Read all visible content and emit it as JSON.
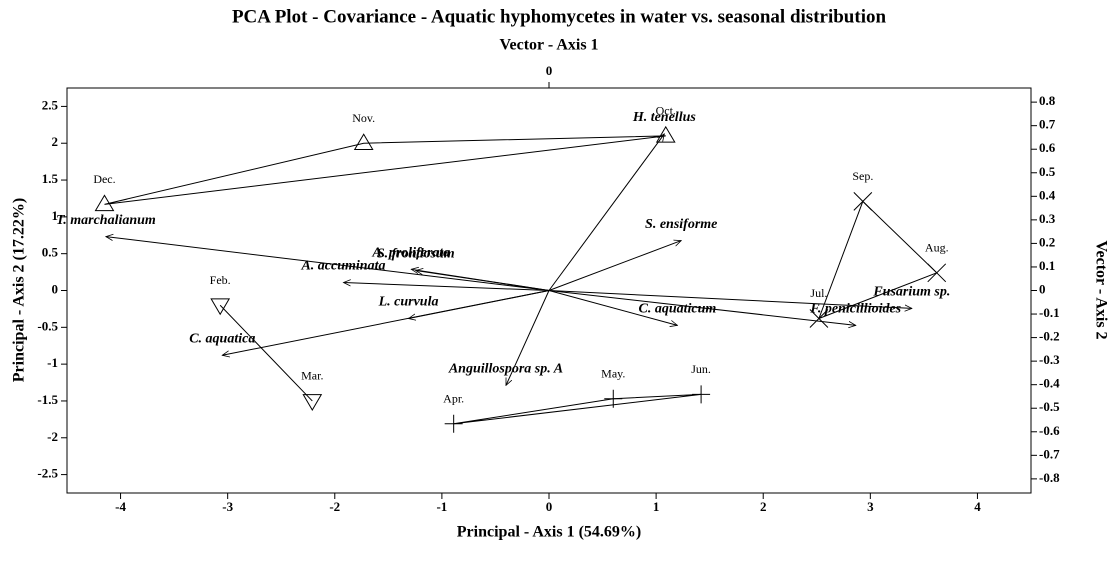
{
  "chart_data": {
    "type": "biplot",
    "title": "PCA Plot - Covariance - Aquatic hyphomycetes in water vs. seasonal distribution",
    "x2_label": "Vector - Axis 1",
    "y_label": "Principal - Axis 2 (17.22%)",
    "y2_label": "Vector - Axis 2",
    "x_label": "Principal - Axis 1 (54.69%)",
    "xlim": [
      -4.5,
      4.5
    ],
    "xticks": [
      -4,
      -3,
      -2,
      -1,
      0,
      1,
      2,
      3,
      4
    ],
    "ylim": [
      -2.75,
      2.75
    ],
    "yticks": [
      2.5,
      2,
      1.5,
      1,
      0.5,
      0,
      -0.5,
      -1,
      -1.5,
      -2,
      -2.5
    ],
    "x2lim": [
      -1.4,
      1.4
    ],
    "x2ticks": [
      0
    ],
    "y2lim": [
      -0.86,
      0.86
    ],
    "y2ticks": [
      0.8,
      0.7,
      0.6,
      0.5,
      0.4,
      0.3,
      0.2,
      0.1,
      0,
      -0.1,
      -0.2,
      -0.3,
      -0.4,
      -0.5,
      -0.6,
      -0.7,
      -0.8
    ],
    "color": "#000000",
    "series": [
      {
        "marker": "triangle-up",
        "labels": [
          "Dec.",
          "Nov.",
          "Oct."
        ],
        "x": [
          -4.15,
          -1.73,
          1.09
        ],
        "y": [
          1.17,
          2.0,
          2.1
        ]
      },
      {
        "marker": "triangle-down",
        "labels": [
          "Feb.",
          "Mar."
        ],
        "x": [
          -3.07,
          -2.21
        ],
        "y": [
          -0.2,
          -1.5
        ]
      },
      {
        "marker": "plus",
        "labels": [
          "Apr.",
          "May.",
          "Jun."
        ],
        "x": [
          -0.89,
          0.6,
          1.42
        ],
        "y": [
          -1.81,
          -1.47,
          -1.41
        ]
      },
      {
        "marker": "cross",
        "labels": [
          "Jul.",
          "Aug.",
          "Sep."
        ],
        "x": [
          2.52,
          3.62,
          2.93
        ],
        "y": [
          -0.38,
          0.24,
          1.21
        ]
      }
    ],
    "vectors": {
      "labels": [
        "H. tenellus",
        "S. ensiforme",
        "T. marchalianum",
        "A. proliferata",
        "S. frondosum",
        "A. accuminata",
        "L. curvula",
        "C. aquatica",
        "Anguillospora sp. A",
        "C. aquaticum",
        "F. penicillioides",
        "Fusarium sp."
      ],
      "x": [
        0.335,
        0.384,
        -1.287,
        -0.4,
        -0.387,
        -0.597,
        -0.408,
        -0.949,
        -0.125,
        0.373,
        0.891,
        1.054
      ],
      "y": [
        0.665,
        0.212,
        0.229,
        0.09,
        0.085,
        0.034,
        -0.119,
        -0.275,
        -0.403,
        -0.148,
        -0.148,
        -0.076
      ]
    }
  }
}
